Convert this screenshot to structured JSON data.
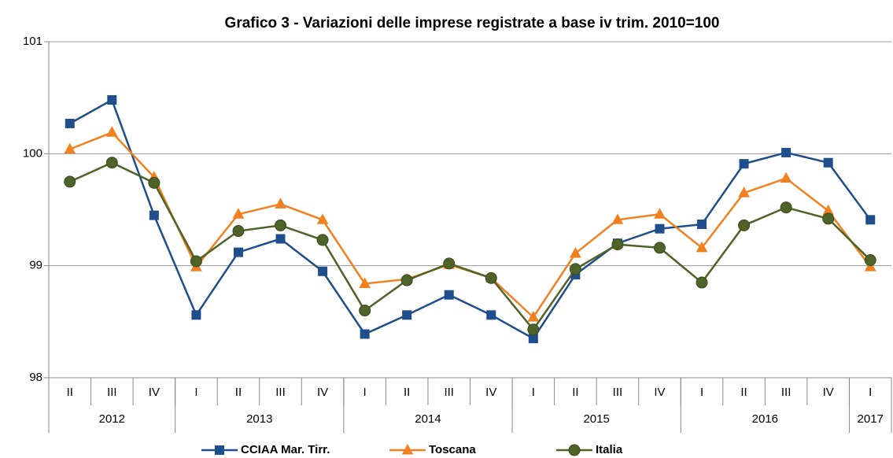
{
  "chart_data": {
    "type": "line",
    "title": "Grafico 3 - Variazioni delle imprese registrate a base iv trim. 2010=100",
    "categories": [
      "II",
      "III",
      "IV",
      "I",
      "II",
      "III",
      "IV",
      "I",
      "II",
      "III",
      "IV",
      "I",
      "II",
      "III",
      "IV",
      "I",
      "II",
      "III",
      "IV",
      "I"
    ],
    "category_groups": [
      {
        "label": "2012",
        "count": 3
      },
      {
        "label": "2013",
        "count": 4
      },
      {
        "label": "2014",
        "count": 4
      },
      {
        "label": "2015",
        "count": 4
      },
      {
        "label": "2016",
        "count": 4
      },
      {
        "label": "2017",
        "count": 1
      }
    ],
    "series": [
      {
        "name": "CCIAA Mar. Tirr.",
        "color": "#1f4e8c",
        "marker": "square",
        "values": [
          100.27,
          100.48,
          99.45,
          98.56,
          99.12,
          99.24,
          98.95,
          98.39,
          98.56,
          98.74,
          98.56,
          98.35,
          98.92,
          99.2,
          99.33,
          99.37,
          99.91,
          100.01,
          99.92,
          99.41
        ]
      },
      {
        "name": "Toscana",
        "color": "#f08020",
        "marker": "triangle",
        "values": [
          100.04,
          100.19,
          99.79,
          98.99,
          99.46,
          99.55,
          99.41,
          98.84,
          98.88,
          99.01,
          98.89,
          98.54,
          99.11,
          99.41,
          99.46,
          99.16,
          99.65,
          99.78,
          99.49,
          98.99
        ]
      },
      {
        "name": "Italia",
        "color": "#4f6228",
        "marker": "circle",
        "values": [
          99.75,
          99.92,
          99.74,
          99.04,
          99.31,
          99.36,
          99.23,
          98.6,
          98.87,
          99.02,
          98.89,
          98.43,
          98.97,
          99.19,
          99.16,
          98.85,
          99.36,
          99.52,
          99.42,
          99.05
        ]
      }
    ],
    "ylim": [
      98,
      101
    ],
    "yticks": [
      98,
      99,
      100,
      101
    ],
    "grid": true
  }
}
